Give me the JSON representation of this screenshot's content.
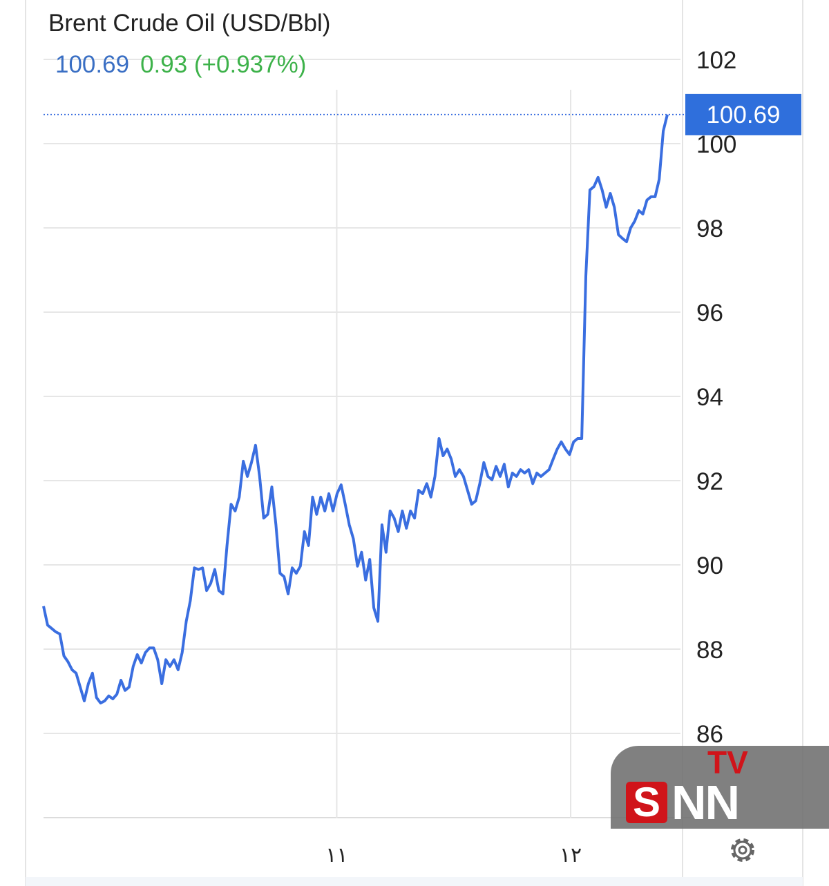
{
  "header": {
    "title": "Brent Crude Oil (USD/Bbl)",
    "price": "100.69",
    "change": "0.93 (+0.937%)"
  },
  "price_tag": "100.69",
  "watermark": {
    "logo_text": "SNN TV"
  },
  "colors": {
    "line": "#3a6ee0",
    "price_tag": "#2f6fdc",
    "positive": "#3db24a",
    "price_text": "#3a6fc4"
  },
  "chart_data": {
    "type": "line",
    "title": "Brent Crude Oil (USD/Bbl)",
    "ylim": [
      84,
      102
    ],
    "y_ticks": [
      "102",
      "100",
      "98",
      "96",
      "94",
      "92",
      "90",
      "88",
      "86"
    ],
    "y_tick_values": [
      102,
      100,
      98,
      96,
      94,
      92,
      90,
      88,
      86
    ],
    "x_ticks": [
      "۱۱",
      "۱۲"
    ],
    "x_tick_fraction": [
      0.47,
      0.845
    ],
    "grid": true,
    "last_value": 100.69,
    "values": [
      89.02,
      88.57,
      88.49,
      88.41,
      88.36,
      87.84,
      87.7,
      87.51,
      87.43,
      87.1,
      86.77,
      87.18,
      87.43,
      86.85,
      86.72,
      86.77,
      86.89,
      86.82,
      86.93,
      87.26,
      87.02,
      87.1,
      87.59,
      87.87,
      87.67,
      87.92,
      88.03,
      88.03,
      87.75,
      87.18,
      87.75,
      87.59,
      87.75,
      87.51,
      87.92,
      88.66,
      89.15,
      89.93,
      89.89,
      89.93,
      89.39,
      89.56,
      89.89,
      89.39,
      89.31,
      90.46,
      91.44,
      91.28,
      91.61,
      92.46,
      92.1,
      92.43,
      92.84,
      92.1,
      91.11,
      91.2,
      91.85,
      90.95,
      89.8,
      89.72,
      89.31,
      89.93,
      89.8,
      89.97,
      90.79,
      90.46,
      91.61,
      91.2,
      91.61,
      91.28,
      91.69,
      91.28,
      91.69,
      91.9,
      91.44,
      90.95,
      90.62,
      89.97,
      90.3,
      89.64,
      90.13,
      88.98,
      88.66,
      90.95,
      90.3,
      91.28,
      91.11,
      90.79,
      91.28,
      90.87,
      91.28,
      91.11,
      91.77,
      91.69,
      91.93,
      91.61,
      92.1,
      93.0,
      92.59,
      92.75,
      92.51,
      92.1,
      92.26,
      92.1,
      91.77,
      91.44,
      91.52,
      91.93,
      92.43,
      92.1,
      92.02,
      92.34,
      92.1,
      92.39,
      91.85,
      92.18,
      92.1,
      92.26,
      92.18,
      92.26,
      91.93,
      92.18,
      92.1,
      92.18,
      92.26,
      92.51,
      92.75,
      92.92,
      92.75,
      92.62,
      92.92,
      93.0,
      93.0,
      96.85,
      98.9,
      98.98,
      99.2,
      98.9,
      98.49,
      98.82,
      98.49,
      97.84,
      97.75,
      97.67,
      98.0,
      98.16,
      98.41,
      98.33,
      98.66,
      98.74,
      98.74,
      99.15,
      100.3,
      100.69
    ]
  }
}
